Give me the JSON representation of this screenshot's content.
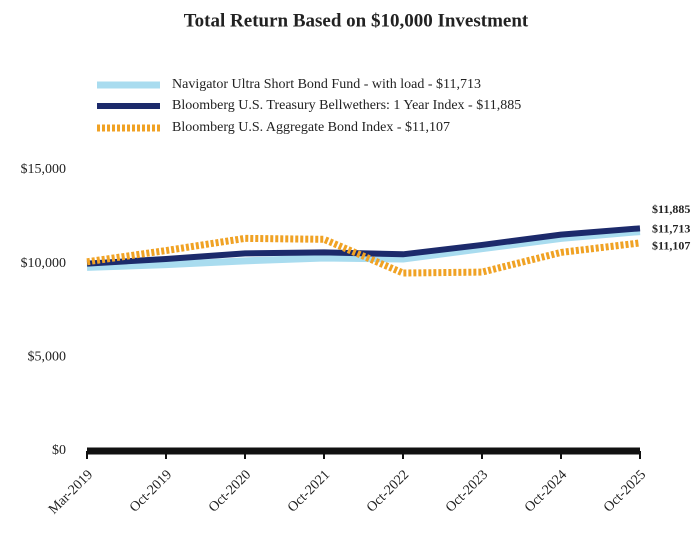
{
  "chart_data": {
    "type": "line",
    "title": "Total Return Based on $10,000 Investment",
    "categories": [
      "Mar-2019",
      "Oct-2019",
      "Oct-2020",
      "Oct-2021",
      "Oct-2022",
      "Oct-2023",
      "Oct-2024",
      "Oct-2025"
    ],
    "series": [
      {
        "name": "Navigator Ultra Short Bond Fund - with load - $11,713",
        "color": "#a9dcef",
        "style": "solid",
        "values": [
          9800,
          9950,
          10150,
          10300,
          10250,
          10800,
          11350,
          11713
        ],
        "value_labels": [
          null,
          null,
          null,
          null,
          null,
          null,
          null,
          "$11,713"
        ]
      },
      {
        "name": "Bloomberg U.S. Treasury Bellwethers: 1 Year Index - $11,885",
        "color": "#1c2a6b",
        "style": "solid",
        "values": [
          10000,
          10250,
          10550,
          10600,
          10500,
          11000,
          11550,
          11885
        ],
        "value_labels": [
          null,
          null,
          null,
          null,
          null,
          null,
          null,
          "$11,885"
        ]
      },
      {
        "name": "Bloomberg U.S. Aggregate Bond Index - $11,107",
        "color": "#f0a224",
        "style": "dotted",
        "values": [
          10100,
          10700,
          11350,
          11300,
          9500,
          9550,
          10600,
          11107
        ],
        "value_labels": [
          null,
          null,
          null,
          null,
          null,
          null,
          null,
          "$11,107"
        ]
      }
    ],
    "ylim": [
      0,
      15000
    ],
    "yticks": [
      {
        "value": 0,
        "label": "$0"
      },
      {
        "value": 5000,
        "label": "$5,000"
      },
      {
        "value": 10000,
        "label": "$10,000"
      },
      {
        "value": 15000,
        "label": "$15,000"
      }
    ],
    "grid": false
  }
}
